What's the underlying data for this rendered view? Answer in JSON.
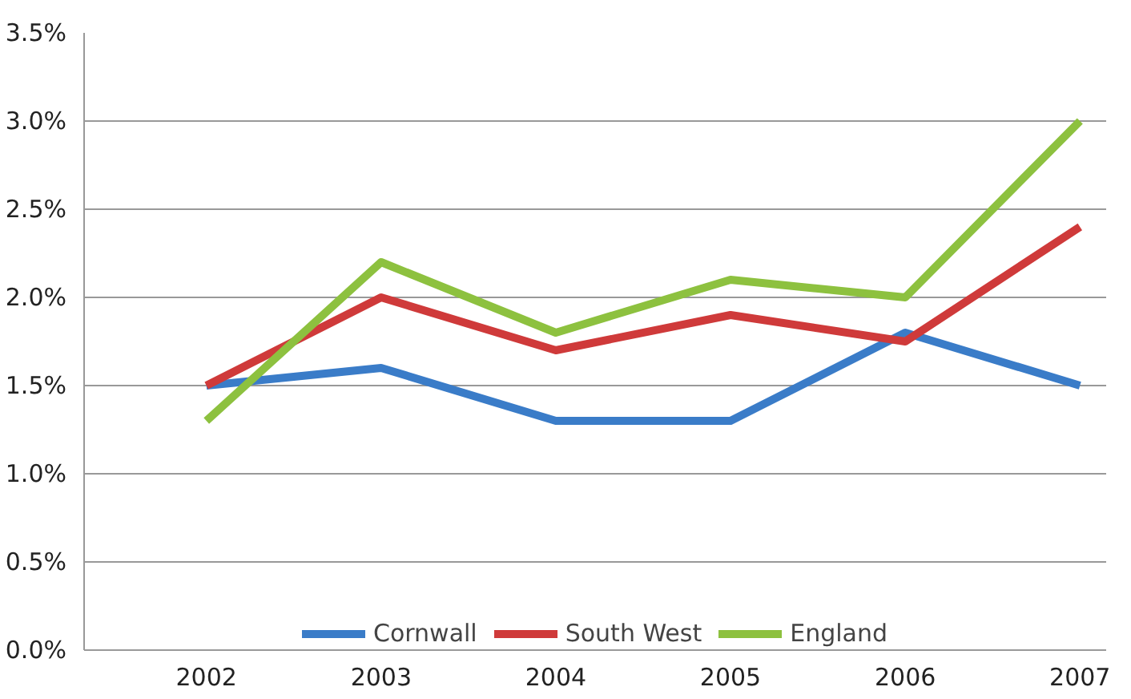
{
  "chart_data": {
    "type": "line",
    "categories": [
      "2002",
      "2003",
      "2004",
      "2005",
      "2006",
      "2007"
    ],
    "series": [
      {
        "name": "Cornwall",
        "color": "#3a7cc8",
        "values": [
          1.5,
          1.6,
          1.3,
          1.3,
          1.8,
          1.5
        ]
      },
      {
        "name": "South West",
        "color": "#cf3a3a",
        "values": [
          1.5,
          2.0,
          1.7,
          1.9,
          1.75,
          2.4
        ]
      },
      {
        "name": "England",
        "color": "#8dc13f",
        "values": [
          1.3,
          2.2,
          1.8,
          2.1,
          2.0,
          3.0
        ]
      }
    ],
    "ylim": [
      0,
      3.5
    ],
    "yticks": [
      {
        "value": 0,
        "label": "0.0%"
      },
      {
        "value": 0.5,
        "label": "0.5%"
      },
      {
        "value": 1,
        "label": "1.0%"
      },
      {
        "value": 1.5,
        "label": "1.5%"
      },
      {
        "value": 2,
        "label": "2.0%"
      },
      {
        "value": 2.5,
        "label": "2.5%"
      },
      {
        "value": 3,
        "label": "3.0%"
      },
      {
        "value": 3.5,
        "label": "3.5%"
      }
    ],
    "grid": "y",
    "legend": "bottom",
    "line_style": "solid",
    "marker": "none"
  }
}
